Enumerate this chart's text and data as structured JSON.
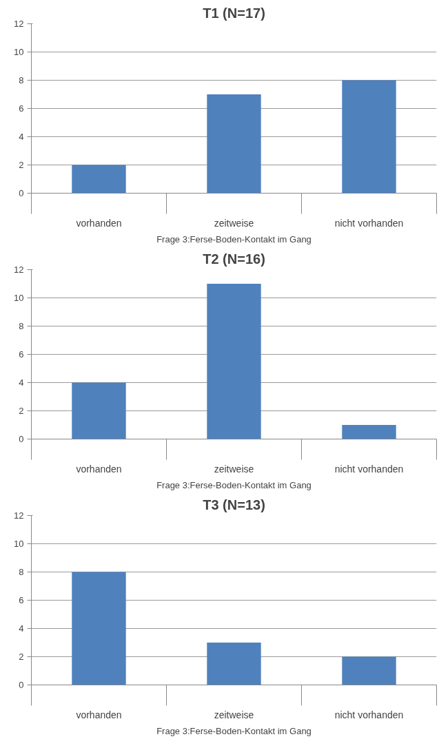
{
  "chart_data": [
    {
      "type": "bar",
      "title": "T1 (N=17)",
      "xlabel": "Frage 3:Ferse-Boden-Kontakt im Gang",
      "categories": [
        "vorhanden",
        "zeitweise",
        "nicht vorhanden"
      ],
      "values": [
        2,
        7,
        8
      ],
      "color": "#4f81bd",
      "ylim": [
        0,
        12
      ],
      "yticks": [
        0,
        2,
        4,
        6,
        8,
        10,
        12
      ],
      "grid": "y"
    },
    {
      "type": "bar",
      "title": "T2 (N=16)",
      "xlabel": "Frage 3:Ferse-Boden-Kontakt im Gang",
      "categories": [
        "vorhanden",
        "zeitweise",
        "nicht vorhanden"
      ],
      "values": [
        4,
        11,
        1
      ],
      "color": "#4f81bd",
      "ylim": [
        0,
        12
      ],
      "yticks": [
        0,
        2,
        4,
        6,
        8,
        10,
        12
      ],
      "grid": "y"
    },
    {
      "type": "bar",
      "title": "T3 (N=13)",
      "xlabel": "Frage 3:Ferse-Boden-Kontakt im Gang",
      "categories": [
        "vorhanden",
        "zeitweise",
        "nicht vorhanden"
      ],
      "values": [
        8,
        3,
        2
      ],
      "color": "#4f81bd",
      "ylim": [
        0,
        12
      ],
      "yticks": [
        0,
        2,
        4,
        6,
        8,
        10,
        12
      ],
      "grid": "y"
    }
  ]
}
